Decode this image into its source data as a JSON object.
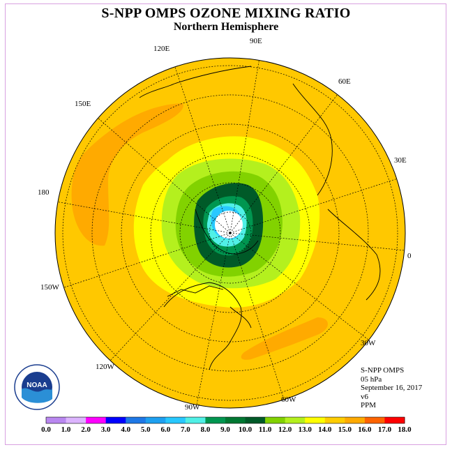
{
  "title": "S-NPP OMPS OZONE MIXING RATIO",
  "subtitle": "Northern Hemisphere",
  "longitude_labels": [
    {
      "text": "90E",
      "lon": 90
    },
    {
      "text": "120E",
      "lon": 120
    },
    {
      "text": "60E",
      "lon": 60
    },
    {
      "text": "150E",
      "lon": 150
    },
    {
      "text": "30E",
      "lon": 30
    },
    {
      "text": "180",
      "lon": 180
    },
    {
      "text": "0",
      "lon": 0
    },
    {
      "text": "150W",
      "lon": -150
    },
    {
      "text": "30W",
      "lon": -30
    },
    {
      "text": "120W",
      "lon": -120
    },
    {
      "text": "60W",
      "lon": -60
    },
    {
      "text": "90W",
      "lon": -90
    }
  ],
  "info": {
    "instrument": "S-NPP OMPS",
    "level": "05 hPa",
    "date": "September 16, 2017",
    "version": "v6",
    "units": "PPM"
  },
  "logo": {
    "text": "NOAA",
    "ring_text": "NATIONAL OCEANIC AND ATMOSPHERIC ADMINISTRATION · U.S. DEPARTMENT OF COMMERCE"
  },
  "colorbar": {
    "labels": [
      "0.0",
      "1.0",
      "2.0",
      "3.0",
      "4.0",
      "5.0",
      "6.0",
      "7.0",
      "8.0",
      "9.0",
      "10.0",
      "11.0",
      "12.0",
      "13.0",
      "14.0",
      "15.0",
      "16.0",
      "17.0",
      "18.0"
    ],
    "colors": [
      "#b987f0",
      "#dcb4ff",
      "#ff00ff",
      "#0000ff",
      "#1e78e6",
      "#1ea0f0",
      "#28c8ff",
      "#50f0e6",
      "#009650",
      "#007832",
      "#005a28",
      "#82d200",
      "#b4f01e",
      "#ffff00",
      "#ffcd00",
      "#ffaa00",
      "#ff6400",
      "#ff0000",
      "#8c5a3c"
    ]
  }
}
